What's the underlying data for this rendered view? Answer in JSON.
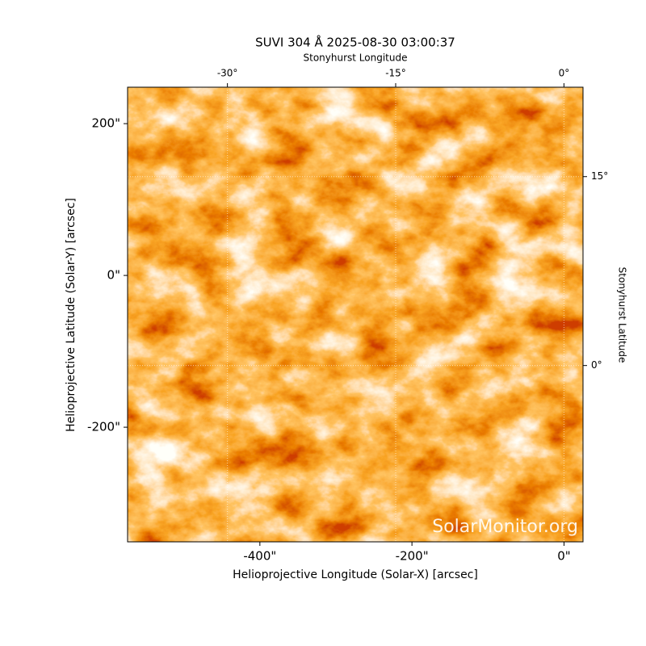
{
  "chart_data": {
    "type": "image",
    "title": "SUVI 304 Å 2025-08-30 03:00:37",
    "xlabel": "Helioprojective Longitude (Solar-X) [arcsec]",
    "ylabel": "Helioprojective Latitude (Solar-Y) [arcsec]",
    "x2label": "Stonyhurst Longitude",
    "y2label": "Stonyhurst Latitude",
    "xlim": [
      -574,
      25
    ],
    "ylim": [
      -351,
      248
    ],
    "xticks": [
      {
        "value": -400,
        "label": "-400\""
      },
      {
        "value": -200,
        "label": "-200\""
      },
      {
        "value": 0,
        "label": "0\""
      }
    ],
    "yticks": [
      {
        "value": -200,
        "label": "-200\""
      },
      {
        "value": 0,
        "label": "0\""
      },
      {
        "value": 200,
        "label": "200\""
      }
    ],
    "x2lim": [
      -38.9,
      1.7
    ],
    "x2ticks": [
      {
        "value": -30,
        "label": "-30°"
      },
      {
        "value": -15,
        "label": "-15°"
      },
      {
        "value": 0,
        "label": "0°"
      }
    ],
    "y2lim": [
      -14,
      22.1
    ],
    "y2ticks": [
      {
        "value": 0,
        "label": "0°"
      },
      {
        "value": 15,
        "label": "15°"
      }
    ],
    "grid": true,
    "annotation": "SolarMonitor.org"
  }
}
